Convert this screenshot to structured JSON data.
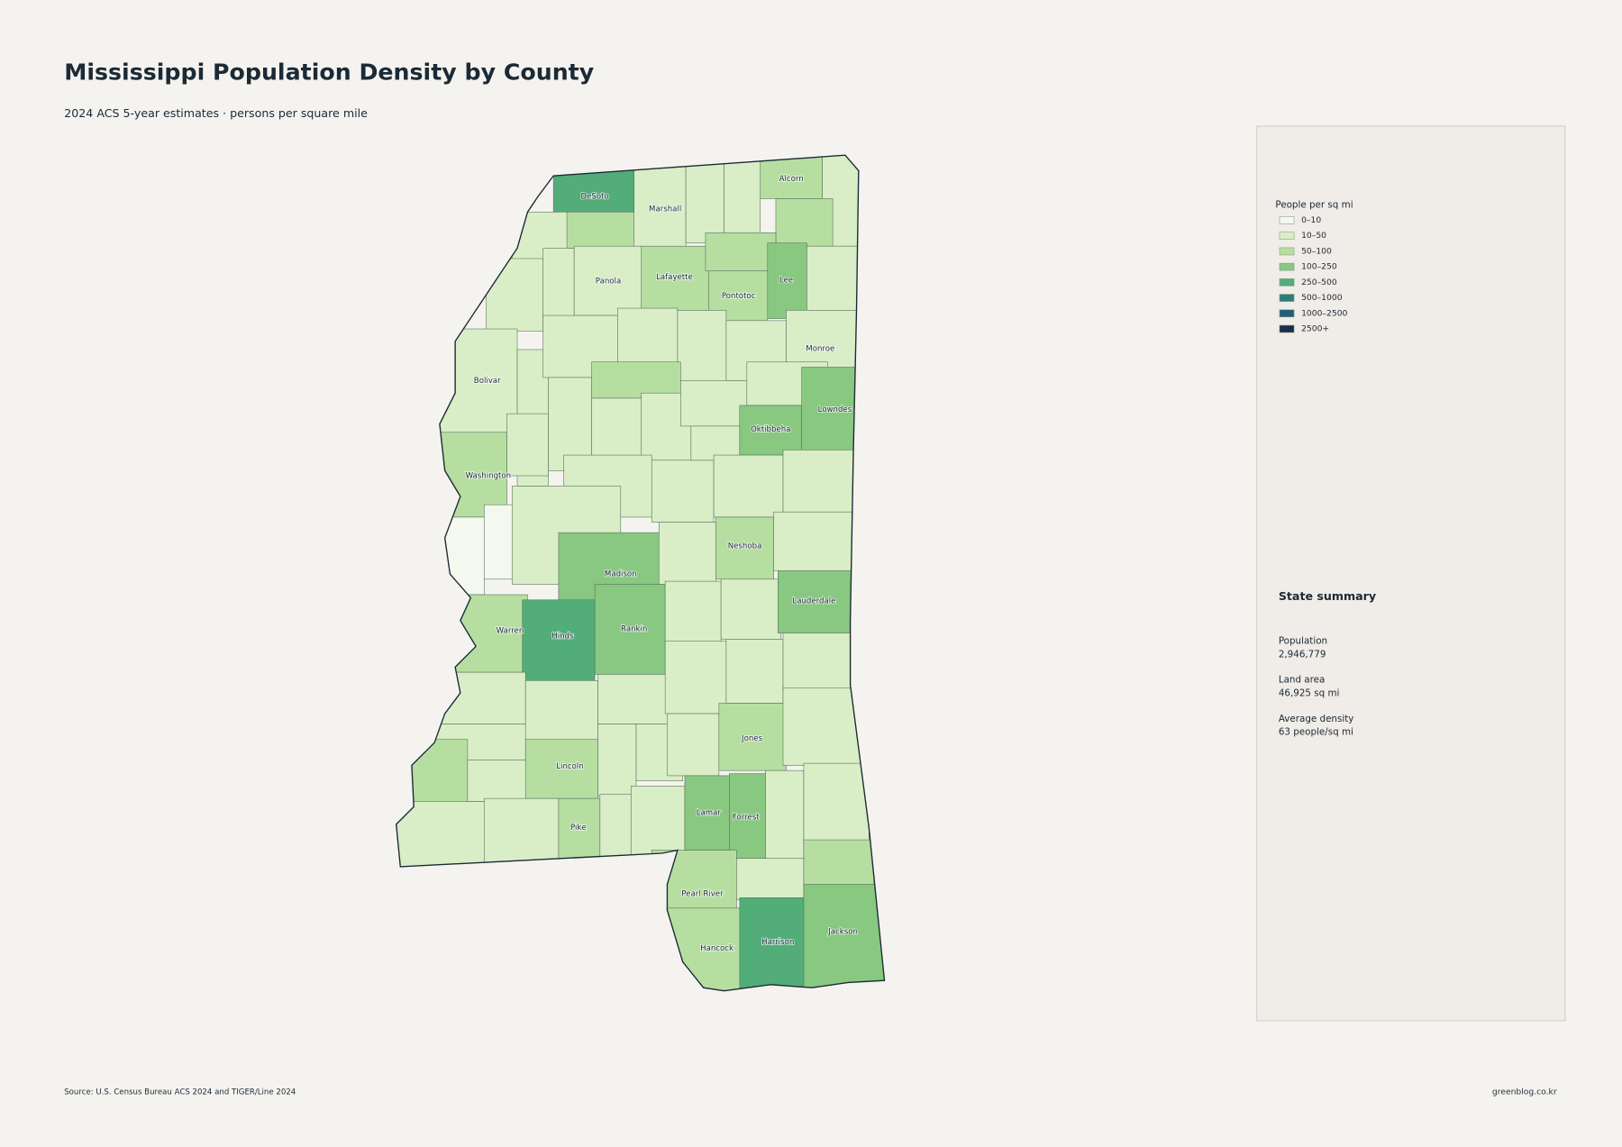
{
  "header": {
    "title": "Mississippi Population Density by County",
    "subtitle": "2024 ACS 5-year estimates · persons per square mile"
  },
  "legend": {
    "title": "People per sq mi",
    "items": [
      {
        "label": "0–10",
        "color": "#f4f8ef"
      },
      {
        "label": "10–50",
        "color": "#d9eec7"
      },
      {
        "label": "50–100",
        "color": "#b6dea1"
      },
      {
        "label": "100–250",
        "color": "#88c880"
      },
      {
        "label": "250–500",
        "color": "#52ad79"
      },
      {
        "label": "500–1000",
        "color": "#2a7f7a"
      },
      {
        "label": "1000–2500",
        "color": "#1f5f78"
      },
      {
        "label": "2500+",
        "color": "#1a2e4a"
      }
    ]
  },
  "counties": [
    {
      "name": "DeSoto",
      "color": "#52ad79"
    },
    {
      "name": null,
      "color": "#d9eec7"
    },
    {
      "name": null,
      "color": "#b6dea1"
    },
    {
      "name": "Marshall",
      "color": "#d9eec7"
    },
    {
      "name": null,
      "color": "#d9eec7"
    },
    {
      "name": null,
      "color": "#d9eec7"
    },
    {
      "name": "Alcorn",
      "color": "#b6dea1"
    },
    {
      "name": null,
      "color": "#d9eec7"
    },
    {
      "name": null,
      "color": "#b6dea1"
    },
    {
      "name": null,
      "color": "#d9eec7"
    },
    {
      "name": null,
      "color": "#d9eec7"
    },
    {
      "name": "Panola",
      "color": "#d9eec7"
    },
    {
      "name": "Lafayette",
      "color": "#b6dea1"
    },
    {
      "name": null,
      "color": "#b6dea1"
    },
    {
      "name": "Pontotoc",
      "color": "#b6dea1"
    },
    {
      "name": "Lee",
      "color": "#88c880"
    },
    {
      "name": null,
      "color": "#d9eec7"
    },
    {
      "name": "Bolivar",
      "color": "#d9eec7"
    },
    {
      "name": null,
      "color": "#d9eec7"
    },
    {
      "name": null,
      "color": "#d9eec7"
    },
    {
      "name": null,
      "color": "#d9eec7"
    },
    {
      "name": null,
      "color": "#d9eec7"
    },
    {
      "name": null,
      "color": "#d9eec7"
    },
    {
      "name": "Monroe",
      "color": "#d9eec7"
    },
    {
      "name": null,
      "color": "#d9eec7"
    },
    {
      "name": null,
      "color": "#b6dea1"
    },
    {
      "name": null,
      "color": "#d9eec7"
    },
    {
      "name": null,
      "color": "#d9eec7"
    },
    {
      "name": null,
      "color": "#d9eec7"
    },
    {
      "name": null,
      "color": "#d9eec7"
    },
    {
      "name": "Oktibbeha",
      "color": "#88c880"
    },
    {
      "name": "Lowndes",
      "color": "#88c880"
    },
    {
      "name": "Washington",
      "color": "#b6dea1"
    },
    {
      "name": null,
      "color": "#d9eec7"
    },
    {
      "name": null,
      "color": "#d9eec7"
    },
    {
      "name": null,
      "color": "#d9eec7"
    },
    {
      "name": null,
      "color": "#d9eec7"
    },
    {
      "name": null,
      "color": "#d9eec7"
    },
    {
      "name": null,
      "color": "#d9eec7"
    },
    {
      "name": null,
      "color": "#f4f8ef"
    },
    {
      "name": null,
      "color": "#f4f8ef"
    },
    {
      "name": null,
      "color": "#d9eec7"
    },
    {
      "name": "Madison",
      "color": "#88c880"
    },
    {
      "name": null,
      "color": "#d9eec7"
    },
    {
      "name": "Neshoba",
      "color": "#b6dea1"
    },
    {
      "name": null,
      "color": "#d9eec7"
    },
    {
      "name": "Warren",
      "color": "#b6dea1"
    },
    {
      "name": "Hinds",
      "color": "#52ad79"
    },
    {
      "name": "Rankin",
      "color": "#88c880"
    },
    {
      "name": null,
      "color": "#d9eec7"
    },
    {
      "name": null,
      "color": "#d9eec7"
    },
    {
      "name": "Lauderdale",
      "color": "#88c880"
    },
    {
      "name": null,
      "color": "#d9eec7"
    },
    {
      "name": null,
      "color": "#d9eec7"
    },
    {
      "name": null,
      "color": "#d9eec7"
    },
    {
      "name": null,
      "color": "#d9eec7"
    },
    {
      "name": null,
      "color": "#d9eec7"
    },
    {
      "name": null,
      "color": "#d9eec7"
    },
    {
      "name": null,
      "color": "#d9eec7"
    },
    {
      "name": null,
      "color": "#b6dea1"
    },
    {
      "name": null,
      "color": "#d9eec7"
    },
    {
      "name": "Lincoln",
      "color": "#b6dea1"
    },
    {
      "name": null,
      "color": "#d9eec7"
    },
    {
      "name": null,
      "color": "#d9eec7"
    },
    {
      "name": null,
      "color": "#d9eec7"
    },
    {
      "name": "Jones",
      "color": "#b6dea1"
    },
    {
      "name": null,
      "color": "#d9eec7"
    },
    {
      "name": null,
      "color": "#d9eec7"
    },
    {
      "name": null,
      "color": "#d9eec7"
    },
    {
      "name": "Pike",
      "color": "#b6dea1"
    },
    {
      "name": null,
      "color": "#d9eec7"
    },
    {
      "name": null,
      "color": "#d9eec7"
    },
    {
      "name": "Lamar",
      "color": "#88c880"
    },
    {
      "name": "Forrest",
      "color": "#88c880"
    },
    {
      "name": null,
      "color": "#d9eec7"
    },
    {
      "name": null,
      "color": "#d9eec7"
    },
    {
      "name": "Pearl River",
      "color": "#b6dea1"
    },
    {
      "name": null,
      "color": "#d9eec7"
    },
    {
      "name": null,
      "color": "#b6dea1"
    },
    {
      "name": "Hancock",
      "color": "#b6dea1"
    },
    {
      "name": "Harrison",
      "color": "#52ad79"
    },
    {
      "name": "Jackson",
      "color": "#88c880"
    }
  ],
  "summary": {
    "title": "State summary",
    "items": [
      {
        "label": "Population",
        "value": "2,946,779"
      },
      {
        "label": "Land area",
        "value": "46,925 sq mi"
      },
      {
        "label": "Average density",
        "value": "63 people/sq mi"
      }
    ]
  },
  "footer": {
    "source": "Source: U.S. Census Bureau ACS 2024 and TIGER/Line 2024",
    "site": "greenblog.co.kr"
  }
}
